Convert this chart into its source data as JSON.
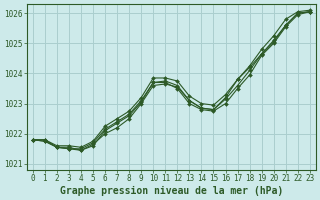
{
  "xlabel": "Graphe pression niveau de la mer (hPa)",
  "ylim": [
    1020.8,
    1026.3
  ],
  "xlim": [
    -0.5,
    23.5
  ],
  "yticks": [
    1021,
    1022,
    1023,
    1024,
    1025,
    1026
  ],
  "xticks": [
    0,
    1,
    2,
    3,
    4,
    5,
    6,
    7,
    8,
    9,
    10,
    11,
    12,
    13,
    14,
    15,
    16,
    17,
    18,
    19,
    20,
    21,
    22,
    23
  ],
  "bg_color": "#cdeaea",
  "grid_color": "#aacece",
  "line_color": "#2d5a27",
  "series": [
    [
      1021.8,
      1021.8,
      1021.55,
      1021.55,
      1021.45,
      1021.65,
      1022.0,
      1022.2,
      1022.5,
      1023.0,
      1023.6,
      1023.65,
      1023.55,
      1023.1,
      1022.85,
      1022.8,
      1023.2,
      1023.8,
      1024.2,
      1024.65,
      1025.05,
      1025.6,
      1026.0,
      1026.05
    ],
    [
      1021.8,
      1021.75,
      1021.55,
      1021.5,
      1021.45,
      1021.6,
      1022.1,
      1022.35,
      1022.6,
      1023.05,
      1023.7,
      1023.7,
      1023.5,
      1023.0,
      1022.8,
      1022.75,
      1023.0,
      1023.5,
      1023.95,
      1024.6,
      1025.0,
      1025.55,
      1025.95,
      1026.05
    ],
    [
      1021.8,
      1021.75,
      1021.55,
      1021.5,
      1021.5,
      1021.7,
      1022.15,
      1022.4,
      1022.65,
      1023.1,
      1023.7,
      1023.75,
      1023.6,
      1023.1,
      1022.85,
      1022.8,
      1023.15,
      1023.6,
      1024.1,
      1024.65,
      1025.1,
      1025.6,
      1026.0,
      1026.05
    ],
    [
      1021.8,
      1021.8,
      1021.6,
      1021.6,
      1021.55,
      1021.75,
      1022.25,
      1022.5,
      1022.75,
      1023.2,
      1023.85,
      1023.85,
      1023.75,
      1023.25,
      1023.0,
      1022.95,
      1023.3,
      1023.8,
      1024.25,
      1024.8,
      1025.25,
      1025.8,
      1026.05,
      1026.1
    ]
  ],
  "tick_fontsize": 5.5,
  "label_fontsize": 7,
  "figw": 3.2,
  "figh": 2.0,
  "dpi": 100
}
